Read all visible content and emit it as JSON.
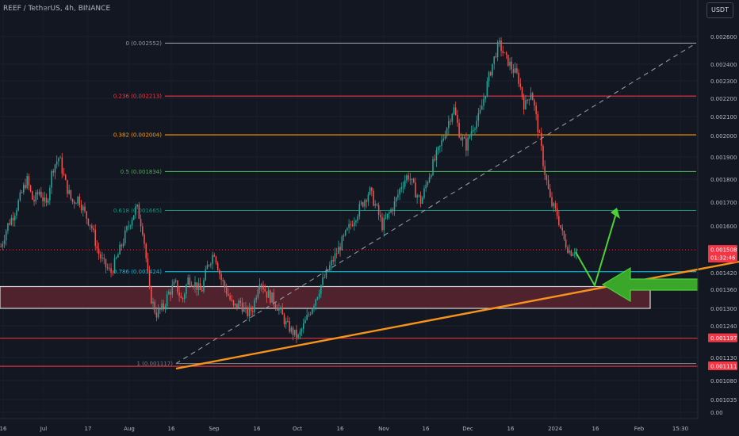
{
  "header": {
    "title": "REEF / TetherUS, 4h, BINANCE",
    "currency_button": "USDT"
  },
  "colors": {
    "background": "#131722",
    "up": "#26a69a",
    "down": "#ef5350",
    "trendline": "#f7931a",
    "arrow": "#4cd137",
    "zone_fill": "#5a2530",
    "zone_border": "#d9d9d9"
  },
  "chart_data": {
    "type": "candlestick",
    "symbol": "REEF / TetherUS",
    "timeframe": "4h",
    "exchange": "BINANCE",
    "y_ticks": [
      "0.002600",
      "0.002400",
      "0.002300",
      "0.002200",
      "0.002100",
      "0.002000",
      "0.001900",
      "0.001800",
      "0.001700",
      "0.001600",
      "0.001420",
      "0.001360",
      "0.001300",
      "0.001240",
      "0.001130",
      "0.001080",
      "0.001035",
      "0.00"
    ],
    "x_ticks": [
      "16",
      "Jul",
      "17",
      "Aug",
      "16",
      "Sep",
      "16",
      "Oct",
      "16",
      "Nov",
      "16",
      "Dec",
      "16",
      "2024",
      "16",
      "Feb",
      "15:30"
    ],
    "fib_levels": [
      {
        "ratio": "0",
        "label": "0 (0.002552)",
        "value": 0.002552,
        "color": "#9598a1"
      },
      {
        "ratio": "0.236",
        "label": "0.236 (0.002213)",
        "value": 0.002213,
        "color": "#f23645"
      },
      {
        "ratio": "0.382",
        "label": "0.382 (0.002004)",
        "value": 0.002004,
        "color": "#ff9800"
      },
      {
        "ratio": "0.5",
        "label": "0.5 (0.001834)",
        "value": 0.001834,
        "color": "#4caf50"
      },
      {
        "ratio": "0.618",
        "label": "0.618 (0.001665)",
        "value": 0.001665,
        "color": "#089981"
      },
      {
        "ratio": "0.786",
        "label": "0.786 (0.001424)",
        "value": 0.001424,
        "color": "#00bcd4"
      },
      {
        "ratio": "1",
        "label": "1 (0.001117)",
        "value": 0.001117,
        "color": "#787b86"
      }
    ],
    "horizontal_levels": [
      0.001197,
      0.001111
    ],
    "price_tags": [
      {
        "value": "0.001508",
        "countdown": "01:32:46",
        "color": "#f23645"
      },
      {
        "value": "0.001197",
        "color": "#f23645"
      },
      {
        "value": "0.001111",
        "color": "#f23645"
      }
    ],
    "support_zone": {
      "top": 0.00137,
      "bottom": 0.0013
    },
    "price_path": [
      [
        0.00152,
        0.0016
      ],
      [
        0.00165,
        0.00172
      ],
      [
        0.0018,
        0.0017
      ],
      [
        0.00175,
        0.00168
      ],
      [
        0.00185,
        0.0019
      ],
      [
        0.00178,
        0.0017
      ],
      [
        0.00172,
        0.00165
      ],
      [
        0.0016,
        0.0015
      ],
      [
        0.00145,
        0.00142
      ],
      [
        0.00148,
        0.00155
      ],
      [
        0.00162,
        0.00168
      ],
      [
        0.00158,
        0.00135
      ],
      [
        0.00128,
        0.0013
      ],
      [
        0.00135,
        0.00138
      ],
      [
        0.00132,
        0.0014
      ],
      [
        0.00138,
        0.00135
      ],
      [
        0.00145,
        0.0015
      ],
      [
        0.0014,
        0.00135
      ],
      [
        0.0013,
        0.00132
      ],
      [
        0.00128,
        0.0013
      ],
      [
        0.0014,
        0.00135
      ],
      [
        0.00133,
        0.0013
      ],
      [
        0.00125,
        0.00122
      ],
      [
        0.0012,
        0.00125
      ],
      [
        0.0013,
        0.00135
      ],
      [
        0.0014,
        0.00145
      ],
      [
        0.0015,
        0.00155
      ],
      [
        0.0016,
        0.00165
      ],
      [
        0.0017,
        0.00175
      ],
      [
        0.00168,
        0.0016
      ],
      [
        0.00165,
        0.0017
      ],
      [
        0.00178,
        0.00182
      ],
      [
        0.00175,
        0.0017
      ],
      [
        0.0018,
        0.00188
      ],
      [
        0.00195,
        0.00205
      ],
      [
        0.00215,
        0.002
      ],
      [
        0.00195,
        0.00205
      ],
      [
        0.0021,
        0.00225
      ],
      [
        0.0024,
        0.00255
      ],
      [
        0.00245,
        0.00238
      ],
      [
        0.00232,
        0.00215
      ],
      [
        0.00225,
        0.00205
      ],
      [
        0.00185,
        0.0017
      ],
      [
        0.00165,
        0.00155
      ],
      [
        0.0015,
        0.00151
      ]
    ]
  }
}
